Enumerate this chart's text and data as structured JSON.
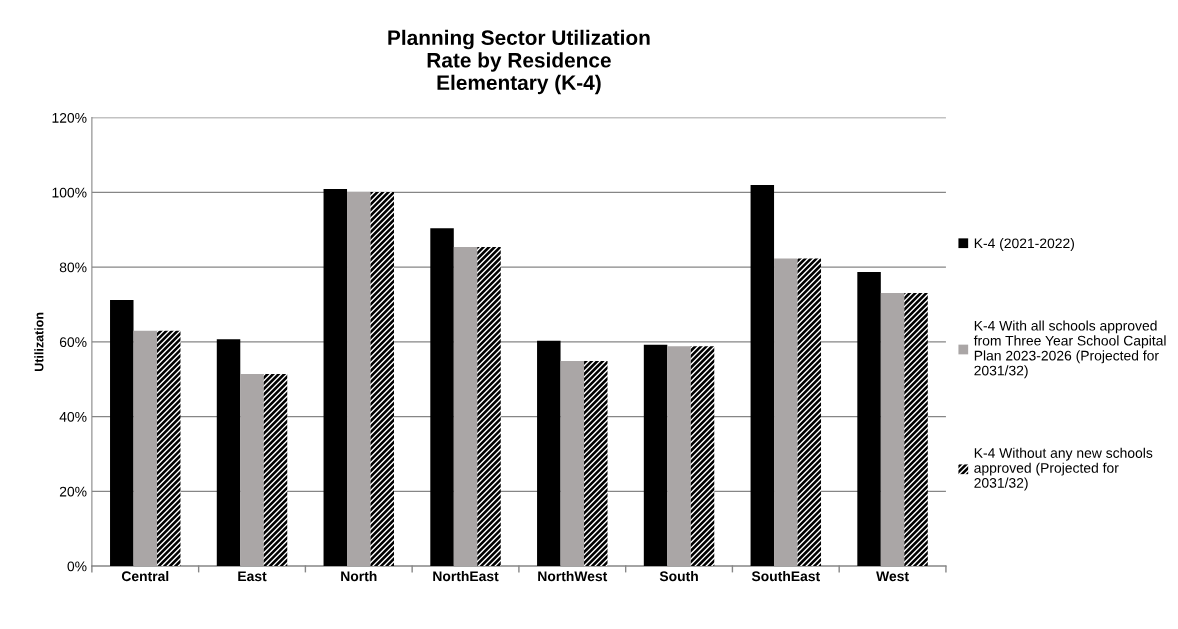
{
  "chart_data": {
    "type": "bar",
    "title": "Planning Sector Utilization\nRate by Residence\nElementary (K-4)",
    "ylabel": "Utilization",
    "categories": [
      "Central",
      "East",
      "North",
      "NorthEast",
      "NorthWest",
      "South",
      "SouthEast",
      "West"
    ],
    "series": [
      {
        "name": "K-4 (2021-2022)",
        "color": "#000000",
        "values": [
          71.2,
          60.7,
          100.9,
          90.4,
          60.3,
          59.2,
          102.0,
          78.7
        ]
      },
      {
        "name": "K-4 With all schools approved from Three Year School Capital Plan 2023-2026 (Projected for 2031/32)",
        "color": "#aaa6a6",
        "values": [
          63.0,
          51.4,
          100.1,
          85.4,
          54.9,
          58.8,
          82.3,
          73.1
        ]
      },
      {
        "name": "K-4 Without any new schools approved (Projected for 2031/32)",
        "color": "#000000",
        "values": [
          63.0,
          51.4,
          100.1,
          85.4,
          54.9,
          58.8,
          82.3,
          73.1
        ]
      }
    ],
    "ylim": [
      0,
      120
    ],
    "yticks": [
      {
        "value": 0,
        "label": "0%"
      },
      {
        "value": 20,
        "label": "20%"
      },
      {
        "value": 40,
        "label": "40%"
      },
      {
        "value": 60,
        "label": "60%"
      },
      {
        "value": 80,
        "label": "80%"
      },
      {
        "value": 100,
        "label": "100%"
      },
      {
        "value": 120,
        "label": "120%"
      }
    ],
    "grid": "y",
    "legend": "right"
  }
}
